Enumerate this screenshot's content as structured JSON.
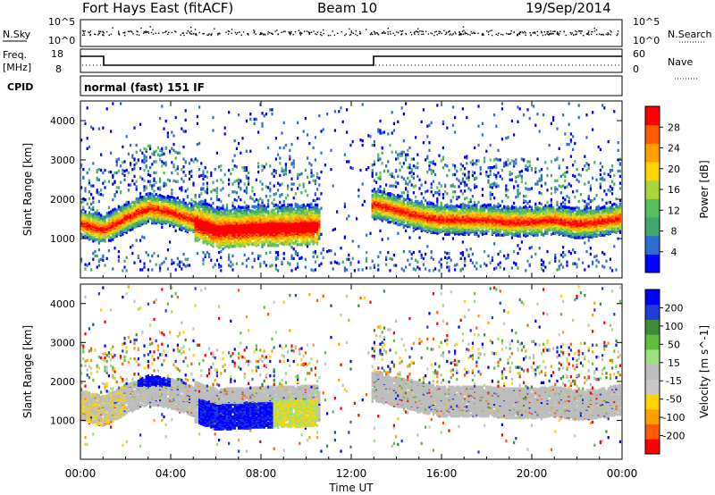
{
  "header": {
    "station": "Fort Hays East (fitACF)",
    "beam": "Beam 10",
    "date": "19/Sep/2014"
  },
  "strip_labels": {
    "nsky": "N.Sky",
    "nsky_tick_top": "10^5",
    "nsky_tick_bottom": "10^0",
    "nsearch": "N.Search",
    "nsearch_tick_top": "10^5",
    "nsearch_tick_bottom": "10^0",
    "freq": "Freq.",
    "freq_unit": "[MHz]",
    "freq_tick_top": "18",
    "freq_tick_bottom": "8",
    "nave": "Nave",
    "nave_tick_top": "60",
    "nave_tick_bottom": "0",
    "cpid": "CPID",
    "cpid_value": "normal (fast) 151 IF"
  },
  "colors": {
    "power_scale": [
      "#0000ff",
      "#2d6fd0",
      "#3fa86a",
      "#57c05a",
      "#a8d63c",
      "#ffd400",
      "#ff9f00",
      "#ff5a00",
      "#ff0000"
    ],
    "velocity_scale": [
      "#0000ff",
      "#1e3dd8",
      "#3e8c3a",
      "#5fbf3a",
      "#9be07a",
      "#bdbdbd",
      "#c8c8c8",
      "#ffd400",
      "#ff9f00",
      "#ff5a00",
      "#ff0000"
    ]
  },
  "chart_data": [
    {
      "type": "heatmap",
      "id": "power",
      "ylabel": "Slant Range [km]",
      "xlabel": "",
      "ylim": [
        0,
        4500
      ],
      "yticks": [
        "1000",
        "2000",
        "3000",
        "4000"
      ],
      "colorbar_label": "Power [dB]",
      "colorbar_ticks": [
        "4",
        "8",
        "12",
        "16",
        "20",
        "24",
        "28"
      ],
      "band_ridge": {
        "x": [
          0,
          1,
          2,
          3,
          4,
          5,
          6,
          7,
          8,
          9,
          10,
          11,
          12,
          13,
          14,
          15,
          16,
          17,
          18,
          19,
          20,
          21,
          22,
          23,
          24
        ],
        "y": [
          1400,
          1250,
          1550,
          1800,
          1700,
          1500,
          1300,
          1320,
          1350,
          1360,
          1380,
          1400,
          1400,
          1900,
          1750,
          1600,
          1500,
          1500,
          1500,
          1450,
          1450,
          1500,
          1400,
          1450,
          1550
        ]
      }
    },
    {
      "type": "heatmap",
      "id": "velocity",
      "ylabel": "Slant Range [km]",
      "xlabel": "Time UT",
      "ylim": [
        0,
        4500
      ],
      "yticks": [
        "1000",
        "2000",
        "3000",
        "4000"
      ],
      "xticks": [
        "00:00",
        "04:00",
        "08:00",
        "12:00",
        "16:00",
        "20:00",
        "00:00"
      ],
      "colorbar_label": "Velocity [m s^-1]",
      "colorbar_ticks": [
        "200",
        "100",
        "50",
        "15",
        "-15",
        "-50",
        "-100",
        "-200"
      ]
    }
  ]
}
